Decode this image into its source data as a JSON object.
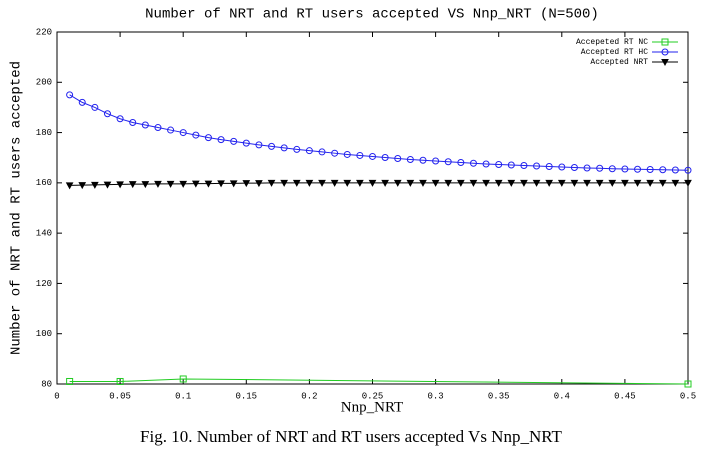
{
  "chart_data": {
    "type": "line",
    "title": "Number of NRT and RT users accepted VS Nnp_NRT (N=500)",
    "x_label": "Nnp_NRT",
    "y_label": "Number of NRT and RT users accepted",
    "caption": "Fig. 10. Number of NRT and RT users accepted Vs Nnp_NRT",
    "xlim": [
      0,
      0.5
    ],
    "ylim": [
      80,
      220
    ],
    "xticks": [
      0,
      0.05,
      0.1,
      0.15,
      0.2,
      0.25,
      0.3,
      0.35,
      0.4,
      0.45,
      0.5
    ],
    "yticks": [
      80,
      100,
      120,
      140,
      160,
      180,
      200,
      220
    ],
    "grid": false,
    "legend": "top-right",
    "series": [
      {
        "name": "Accepeted RT NC",
        "color": "#22cc22",
        "marker": "square",
        "x": [
          0.01,
          0.05,
          0.1,
          0.5
        ],
        "values": [
          81,
          81,
          82,
          80
        ]
      },
      {
        "name": "Accepted RT HC",
        "color": "#2222ee",
        "marker": "circle",
        "x": [
          0.01,
          0.02,
          0.03,
          0.04,
          0.05,
          0.06,
          0.07,
          0.08,
          0.09,
          0.1,
          0.11,
          0.12,
          0.13,
          0.14,
          0.15,
          0.16,
          0.17,
          0.18,
          0.19,
          0.2,
          0.21,
          0.22,
          0.23,
          0.24,
          0.25,
          0.26,
          0.27,
          0.28,
          0.29,
          0.3,
          0.31,
          0.32,
          0.33,
          0.34,
          0.35,
          0.36,
          0.37,
          0.38,
          0.39,
          0.4,
          0.41,
          0.42,
          0.43,
          0.44,
          0.45,
          0.46,
          0.47,
          0.48,
          0.49,
          0.5
        ],
        "values": [
          195,
          192,
          190,
          187.5,
          185.5,
          184,
          183,
          182,
          181,
          180,
          179,
          178,
          177.2,
          176.5,
          175.8,
          175.1,
          174.5,
          173.9,
          173.3,
          172.8,
          172.3,
          171.8,
          171.3,
          170.9,
          170.5,
          170.1,
          169.7,
          169.3,
          169,
          168.7,
          168.4,
          168.1,
          167.8,
          167.5,
          167.3,
          167.1,
          166.9,
          166.7,
          166.5,
          166.3,
          166.1,
          165.9,
          165.8,
          165.6,
          165.5,
          165.4,
          165.3,
          165.2,
          165.1,
          165
        ]
      },
      {
        "name": "Accepted NRT",
        "color": "#000000",
        "marker": "triangle",
        "x": [
          0.01,
          0.02,
          0.03,
          0.04,
          0.05,
          0.06,
          0.07,
          0.08,
          0.09,
          0.1,
          0.11,
          0.12,
          0.13,
          0.14,
          0.15,
          0.16,
          0.17,
          0.18,
          0.19,
          0.2,
          0.21,
          0.22,
          0.23,
          0.24,
          0.25,
          0.26,
          0.27,
          0.28,
          0.29,
          0.3,
          0.31,
          0.32,
          0.33,
          0.34,
          0.35,
          0.36,
          0.37,
          0.38,
          0.39,
          0.4,
          0.41,
          0.42,
          0.43,
          0.44,
          0.45,
          0.46,
          0.47,
          0.48,
          0.49,
          0.5
        ],
        "values": [
          159,
          159.1,
          159.2,
          159.3,
          159.4,
          159.5,
          159.5,
          159.6,
          159.6,
          159.6,
          159.7,
          159.7,
          159.8,
          159.8,
          159.9,
          159.9,
          160,
          160,
          160,
          160,
          160,
          160,
          160,
          160,
          160,
          160,
          160,
          160,
          160,
          160,
          160,
          160,
          160,
          160,
          160,
          160,
          160,
          160,
          160,
          160,
          160,
          160,
          160,
          160,
          160,
          160,
          160,
          160,
          160,
          160
        ]
      }
    ]
  }
}
